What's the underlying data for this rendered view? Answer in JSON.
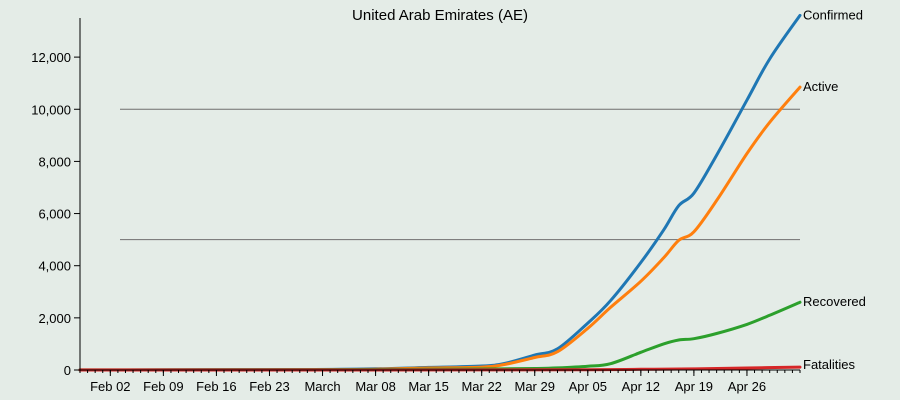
{
  "chart_data": {
    "type": "line",
    "title": "United Arab Emirates (AE)",
    "xlabel": "",
    "ylabel": "",
    "ylim": [
      0,
      13500
    ],
    "y_ticks": [
      0,
      2000,
      4000,
      6000,
      8000,
      10000,
      12000
    ],
    "y_tick_labels": [
      "0",
      "2,000",
      "4,000",
      "6,000",
      "8,000",
      "10,000",
      "12,000"
    ],
    "x_tick_dates": [
      "2020-02-02",
      "2020-02-09",
      "2020-02-16",
      "2020-02-23",
      "2020-03-01",
      "2020-03-08",
      "2020-03-15",
      "2020-03-22",
      "2020-03-29",
      "2020-04-05",
      "2020-04-12",
      "2020-04-19",
      "2020-04-26"
    ],
    "x_tick_labels": [
      "Feb 02",
      "Feb 09",
      "Feb 16",
      "Feb 23",
      "March",
      "Mar 08",
      "Mar 15",
      "Mar 22",
      "Mar 29",
      "Apr 05",
      "Apr 12",
      "Apr 19",
      "Apr 26"
    ],
    "xlim": [
      "2020-01-29",
      "2020-05-03"
    ],
    "reference_lines": [
      5000,
      10000
    ],
    "legend": "labels at line ends",
    "series": [
      {
        "name": "Confirmed",
        "color": "#1f77b4",
        "points": [
          [
            "2020-01-29",
            4
          ],
          [
            "2020-02-10",
            8
          ],
          [
            "2020-02-29",
            21
          ],
          [
            "2020-03-08",
            45
          ],
          [
            "2020-03-15",
            98
          ],
          [
            "2020-03-22",
            153
          ],
          [
            "2020-03-25",
            248
          ],
          [
            "2020-03-29",
            570
          ],
          [
            "2020-04-01",
            814
          ],
          [
            "2020-04-05",
            1799
          ],
          [
            "2020-04-08",
            2659
          ],
          [
            "2020-04-12",
            4123
          ],
          [
            "2020-04-15",
            5365
          ],
          [
            "2020-04-17",
            6302
          ],
          [
            "2020-04-19",
            6781
          ],
          [
            "2020-04-22",
            8238
          ],
          [
            "2020-04-26",
            10349
          ],
          [
            "2020-04-29",
            11929
          ],
          [
            "2020-05-03",
            13599
          ]
        ]
      },
      {
        "name": "Active",
        "color": "#ff7f0e",
        "points": [
          [
            "2020-01-29",
            4
          ],
          [
            "2020-02-10",
            4
          ],
          [
            "2020-02-29",
            8
          ],
          [
            "2020-03-08",
            30
          ],
          [
            "2020-03-15",
            75
          ],
          [
            "2020-03-22",
            110
          ],
          [
            "2020-03-25",
            210
          ],
          [
            "2020-03-29",
            480
          ],
          [
            "2020-04-01",
            700
          ],
          [
            "2020-04-05",
            1600
          ],
          [
            "2020-04-08",
            2400
          ],
          [
            "2020-04-12",
            3400
          ],
          [
            "2020-04-15",
            4300
          ],
          [
            "2020-04-17",
            4970
          ],
          [
            "2020-04-19",
            5300
          ],
          [
            "2020-04-22",
            6500
          ],
          [
            "2020-04-26",
            8300
          ],
          [
            "2020-04-29",
            9500
          ],
          [
            "2020-05-03",
            10850
          ]
        ]
      },
      {
        "name": "Recovered",
        "color": "#2ca02c",
        "points": [
          [
            "2020-01-29",
            0
          ],
          [
            "2020-02-10",
            4
          ],
          [
            "2020-02-29",
            12
          ],
          [
            "2020-03-08",
            20
          ],
          [
            "2020-03-15",
            25
          ],
          [
            "2020-03-22",
            38
          ],
          [
            "2020-03-29",
            58
          ],
          [
            "2020-04-01",
            80
          ],
          [
            "2020-04-05",
            144
          ],
          [
            "2020-04-08",
            240
          ],
          [
            "2020-04-12",
            680
          ],
          [
            "2020-04-15",
            1000
          ],
          [
            "2020-04-17",
            1150
          ],
          [
            "2020-04-19",
            1200
          ],
          [
            "2020-04-22",
            1400
          ],
          [
            "2020-04-26",
            1750
          ],
          [
            "2020-04-29",
            2100
          ],
          [
            "2020-05-03",
            2600
          ]
        ]
      },
      {
        "name": "Fatalities",
        "color": "#d62728",
        "points": [
          [
            "2020-01-29",
            0
          ],
          [
            "2020-03-20",
            2
          ],
          [
            "2020-04-05",
            11
          ],
          [
            "2020-04-12",
            25
          ],
          [
            "2020-04-19",
            41
          ],
          [
            "2020-04-26",
            76
          ],
          [
            "2020-05-03",
            111
          ]
        ]
      }
    ]
  }
}
